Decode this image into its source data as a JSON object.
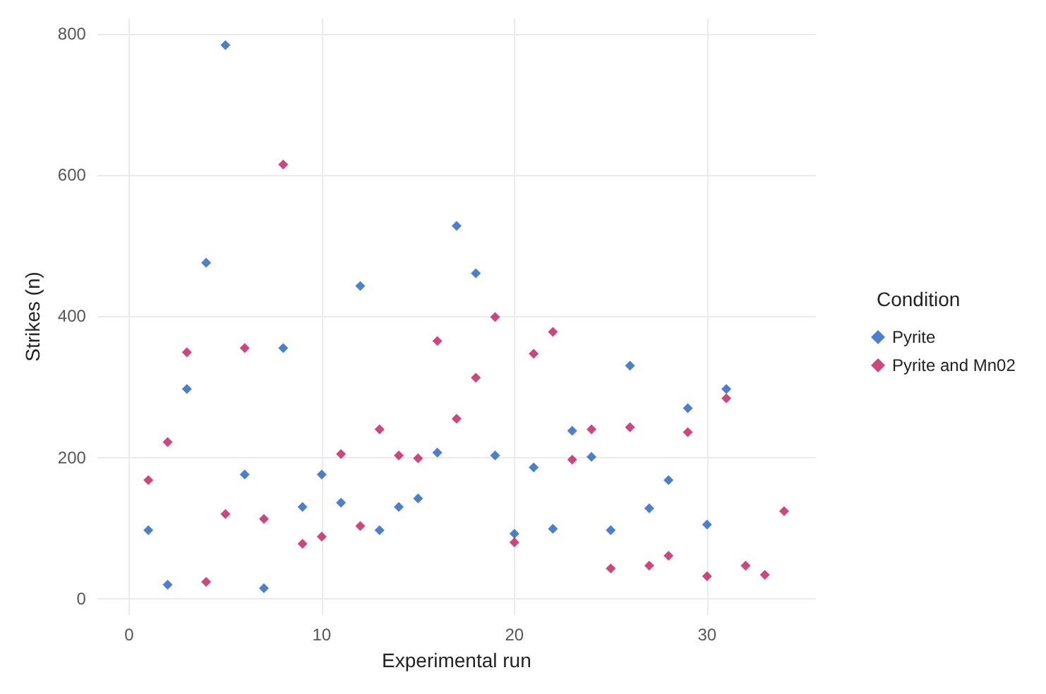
{
  "chart_data": {
    "type": "scatter",
    "xlabel": "Experimental run",
    "ylabel": "Strikes (n)",
    "legend_title": "Condition",
    "legend": "right",
    "grid": true,
    "marker": "diamond",
    "xlim": [
      -1.65,
      35.65
    ],
    "xticks": [
      0,
      10,
      20,
      30
    ],
    "ylim": [
      -23,
      822
    ],
    "yticks": [
      0,
      200,
      400,
      600,
      800
    ],
    "series": [
      {
        "name": "Pyrite",
        "color": "#1f5fbf",
        "x": [
          1,
          2,
          3,
          4,
          5,
          6,
          7,
          8,
          9,
          10,
          11,
          12,
          13,
          14,
          15,
          16,
          17,
          18,
          19,
          20,
          21,
          22,
          23,
          24,
          25,
          26,
          27,
          28,
          29,
          30,
          31
        ],
        "values": [
          97,
          20,
          297,
          476,
          784,
          176,
          15,
          355,
          130,
          176,
          136,
          443,
          97,
          130,
          142,
          207,
          528,
          461,
          203,
          92,
          186,
          99,
          238,
          201,
          97,
          330,
          128,
          168,
          270,
          105,
          297
        ]
      },
      {
        "name": "Pyrite and Mn02",
        "color": "#c2185b",
        "x": [
          1,
          2,
          3,
          4,
          5,
          6,
          7,
          8,
          9,
          10,
          11,
          12,
          13,
          14,
          15,
          16,
          17,
          18,
          19,
          20,
          21,
          22,
          23,
          24,
          25,
          26,
          27,
          28,
          29,
          30,
          31,
          32,
          33,
          34
        ],
        "values": [
          168,
          222,
          349,
          24,
          120,
          355,
          113,
          615,
          78,
          88,
          205,
          103,
          240,
          203,
          199,
          365,
          255,
          313,
          399,
          80,
          347,
          378,
          197,
          240,
          43,
          243,
          47,
          61,
          236,
          32,
          284,
          47,
          34,
          124
        ]
      }
    ]
  }
}
